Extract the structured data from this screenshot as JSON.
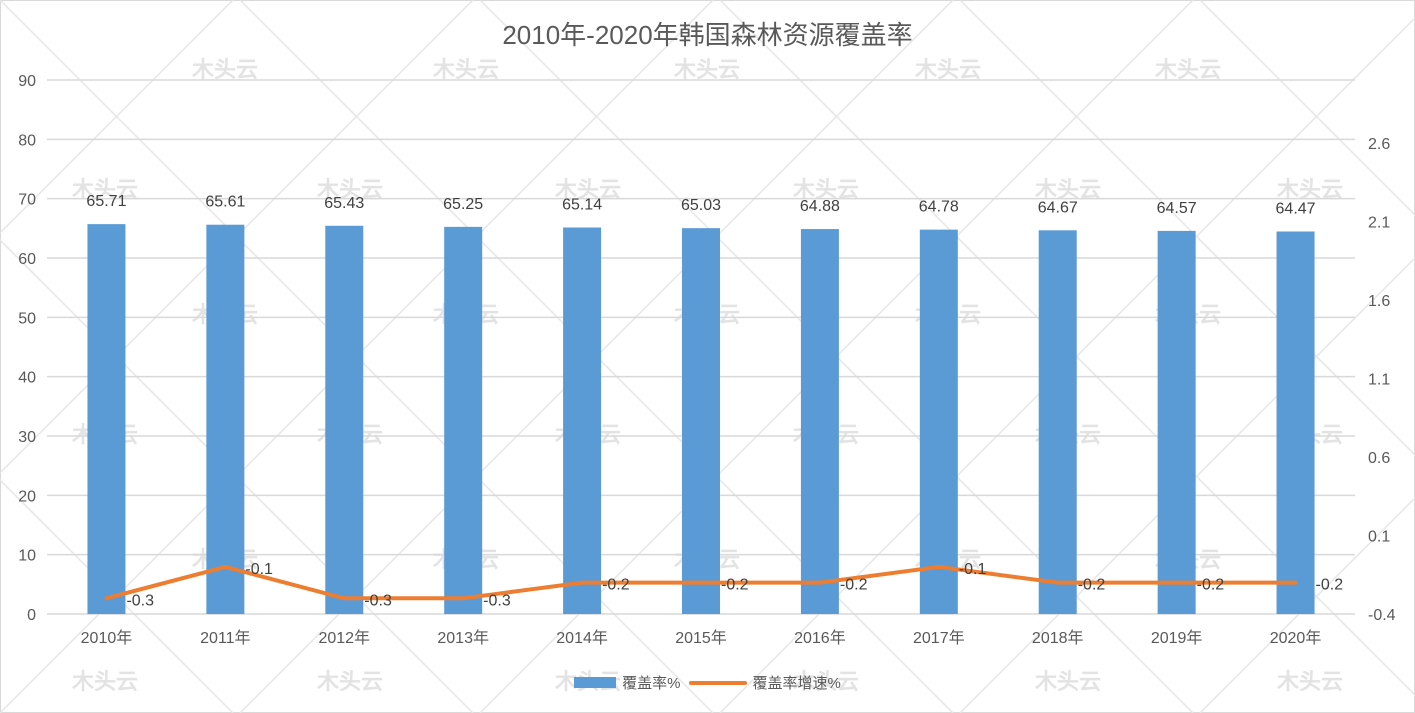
{
  "chart_data": {
    "type": "bar+line",
    "title": "2010年-2020年韩国森林资源覆盖率",
    "categories": [
      "2010年",
      "2011年",
      "2012年",
      "2013年",
      "2014年",
      "2015年",
      "2016年",
      "2017年",
      "2018年",
      "2019年",
      "2020年"
    ],
    "series": [
      {
        "name": "覆盖率%",
        "type": "bar",
        "axis": "left",
        "color": "#5b9bd5",
        "values": [
          65.71,
          65.61,
          65.43,
          65.25,
          65.14,
          65.03,
          64.88,
          64.78,
          64.67,
          64.57,
          64.47
        ]
      },
      {
        "name": "覆盖率增速%",
        "type": "line",
        "axis": "right",
        "color": "#ed7d31",
        "values": [
          -0.3,
          -0.1,
          -0.3,
          -0.3,
          -0.2,
          -0.2,
          -0.2,
          -0.1,
          -0.2,
          -0.2,
          -0.2
        ]
      }
    ],
    "y_left": {
      "min": 0,
      "max": 90,
      "step": 10,
      "ticks": [
        "0",
        "10",
        "20",
        "30",
        "40",
        "50",
        "60",
        "70",
        "80",
        "90"
      ]
    },
    "y_right": {
      "min": -0.4,
      "max": 2.6,
      "step": 0.5,
      "ticks": [
        "-0.4",
        "0.1",
        "0.6",
        "1.1",
        "1.6",
        "2.1",
        "2.6"
      ]
    },
    "xlabel": "",
    "ylabel": "",
    "grid": true,
    "legend_position": "bottom",
    "watermark": "木头云"
  },
  "legend": {
    "bar_label": "覆盖率%",
    "line_label": "覆盖率增速%"
  }
}
